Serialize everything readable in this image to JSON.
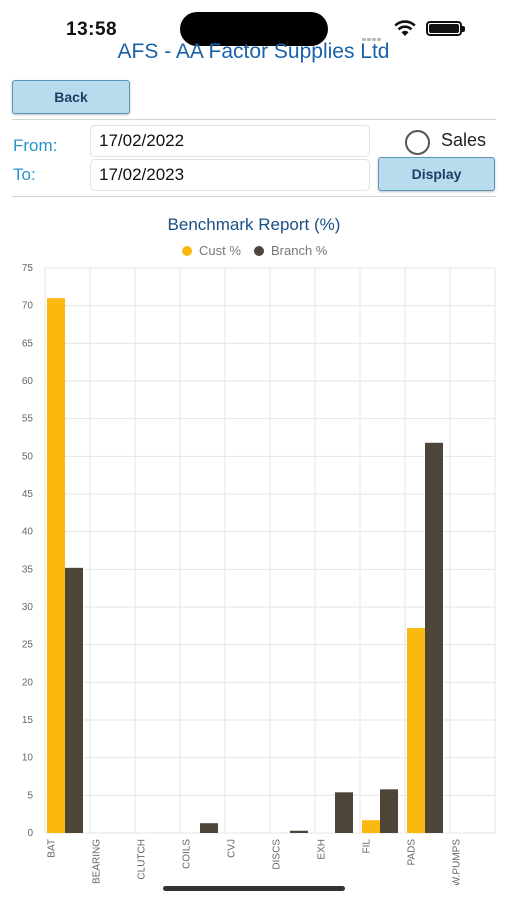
{
  "status": {
    "time": "13:58"
  },
  "app": {
    "title": "AFS - AA Factor Supplies Ltd"
  },
  "toolbar": {
    "back_label": "Back",
    "display_label": "Display"
  },
  "filters": {
    "from_label": "From:",
    "from_value": "17/02/2022",
    "to_label": "To:",
    "to_value": "17/02/2023",
    "sales_label": "Sales",
    "sales_checked": false
  },
  "colors": {
    "cust": "#fbb80f",
    "branch": "#4d4538",
    "grid": "#e6e6e6",
    "title": "#1a4f86"
  },
  "chart_data": {
    "type": "bar",
    "title": "Benchmark Report (%)",
    "categories": [
      "BAT",
      "BEARING",
      "CLUTCH",
      "COILS",
      "CVJ",
      "DISCS",
      "EXH",
      "FIL",
      "PADS",
      "W.PUMPS"
    ],
    "series": [
      {
        "name": "Cust %",
        "values": [
          71,
          0,
          0,
          0,
          0,
          0,
          0,
          1.7,
          27.2,
          0
        ]
      },
      {
        "name": "Branch %",
        "values": [
          35.2,
          0,
          0,
          1.3,
          0,
          0.3,
          5.4,
          5.8,
          51.8,
          0
        ]
      }
    ],
    "ylim": [
      0,
      75
    ],
    "yticks": [
      "0",
      "5",
      "10",
      "15",
      "20",
      "25",
      "30",
      "35",
      "40",
      "45",
      "50",
      "55",
      "60",
      "65",
      "70",
      "75"
    ],
    "grid": true,
    "legend_position": "top-center"
  }
}
